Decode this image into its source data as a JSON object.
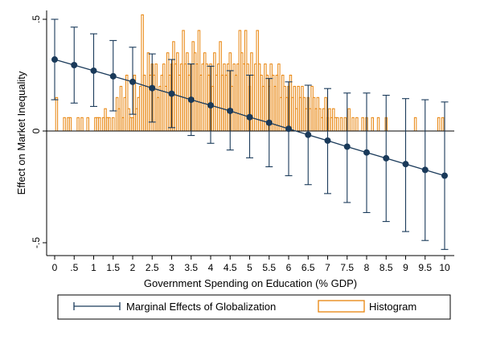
{
  "chart_data": {
    "type": "line",
    "xlabel": "Government Spending on Education (% GDP)",
    "ylabel": "Effect on Market Inequality",
    "xlim": [
      0,
      10
    ],
    "ylim": [
      -0.55,
      0.55
    ],
    "xticks": [
      "0",
      ".5",
      "1",
      "1.5",
      "2",
      "2.5",
      "3",
      "3.5",
      "4",
      "4.5",
      "5",
      "5.5",
      "6",
      "6.5",
      "7",
      "7.5",
      "8",
      "8.5",
      "9",
      "9.5",
      "10"
    ],
    "yticks": [
      {
        "value": 0.5,
        "label": ".5"
      },
      {
        "value": 0,
        "label": "0"
      },
      {
        "value": -0.5,
        "label": "-.5"
      }
    ],
    "zero_line": true,
    "grid": false,
    "legend_position": "bottom",
    "series": [
      {
        "name": "Marginal Effects of Globalization",
        "color": "#1a3a5a",
        "type": "line-with-error-bars",
        "x": [
          0,
          0.5,
          1,
          1.5,
          2,
          2.5,
          3,
          3.5,
          4,
          4.5,
          5,
          5.5,
          6,
          6.5,
          7,
          7.5,
          8,
          8.5,
          9,
          9.5,
          10
        ],
        "y": [
          0.32,
          0.295,
          0.27,
          0.245,
          0.22,
          0.192,
          0.167,
          0.14,
          0.115,
          0.09,
          0.062,
          0.037,
          0.01,
          -0.017,
          -0.043,
          -0.07,
          -0.096,
          -0.122,
          -0.148,
          -0.174,
          -0.2
        ],
        "ci_low": [
          0.14,
          0.125,
          0.11,
          0.09,
          0.075,
          0.04,
          0.015,
          -0.02,
          -0.055,
          -0.085,
          -0.12,
          -0.16,
          -0.2,
          -0.24,
          -0.28,
          -0.32,
          -0.365,
          -0.405,
          -0.45,
          -0.49,
          -0.53
        ],
        "ci_high": [
          0.5,
          0.465,
          0.435,
          0.405,
          0.375,
          0.345,
          0.32,
          0.3,
          0.29,
          0.27,
          0.25,
          0.235,
          0.22,
          0.205,
          0.19,
          0.17,
          0.17,
          0.16,
          0.145,
          0.14,
          0.13
        ]
      },
      {
        "name": "Histogram",
        "color": "#e8840c",
        "type": "histogram",
        "bin_width": 0.05,
        "bins": [
          {
            "x": 0.05,
            "y": 0.15
          },
          {
            "x": 0.25,
            "y": 0.06
          },
          {
            "x": 0.35,
            "y": 0.06
          },
          {
            "x": 0.4,
            "y": 0.06
          },
          {
            "x": 0.6,
            "y": 0.06
          },
          {
            "x": 0.7,
            "y": 0.06
          },
          {
            "x": 0.85,
            "y": 0.06
          },
          {
            "x": 1.05,
            "y": 0.06
          },
          {
            "x": 1.1,
            "y": 0.06
          },
          {
            "x": 1.15,
            "y": 0.06
          },
          {
            "x": 1.25,
            "y": 0.06
          },
          {
            "x": 1.3,
            "y": 0.1
          },
          {
            "x": 1.35,
            "y": 0.06
          },
          {
            "x": 1.4,
            "y": 0.06
          },
          {
            "x": 1.5,
            "y": 0.06
          },
          {
            "x": 1.6,
            "y": 0.15
          },
          {
            "x": 1.65,
            "y": 0.1
          },
          {
            "x": 1.7,
            "y": 0.2
          },
          {
            "x": 1.75,
            "y": 0.06
          },
          {
            "x": 1.8,
            "y": 0.15
          },
          {
            "x": 1.85,
            "y": 0.25
          },
          {
            "x": 1.9,
            "y": 0.1
          },
          {
            "x": 1.95,
            "y": 0.06
          },
          {
            "x": 2.0,
            "y": 0.06
          },
          {
            "x": 2.05,
            "y": 0.25
          },
          {
            "x": 2.1,
            "y": 0.1
          },
          {
            "x": 2.15,
            "y": 0.15
          },
          {
            "x": 2.2,
            "y": 0.2
          },
          {
            "x": 2.25,
            "y": 0.52
          },
          {
            "x": 2.3,
            "y": 0.25
          },
          {
            "x": 2.35,
            "y": 0.2
          },
          {
            "x": 2.4,
            "y": 0.35
          },
          {
            "x": 2.45,
            "y": 0.25
          },
          {
            "x": 2.5,
            "y": 0.3
          },
          {
            "x": 2.55,
            "y": 0.25
          },
          {
            "x": 2.6,
            "y": 0.3
          },
          {
            "x": 2.65,
            "y": 0.15
          },
          {
            "x": 2.7,
            "y": 0.2
          },
          {
            "x": 2.75,
            "y": 0.25
          },
          {
            "x": 2.8,
            "y": 0.3
          },
          {
            "x": 2.85,
            "y": 0.2
          },
          {
            "x": 2.9,
            "y": 0.35
          },
          {
            "x": 2.95,
            "y": 0.25
          },
          {
            "x": 3.0,
            "y": 0.3
          },
          {
            "x": 3.05,
            "y": 0.4
          },
          {
            "x": 3.1,
            "y": 0.3
          },
          {
            "x": 3.15,
            "y": 0.35
          },
          {
            "x": 3.2,
            "y": 0.25
          },
          {
            "x": 3.25,
            "y": 0.3
          },
          {
            "x": 3.3,
            "y": 0.45
          },
          {
            "x": 3.35,
            "y": 0.3
          },
          {
            "x": 3.4,
            "y": 0.35
          },
          {
            "x": 3.45,
            "y": 0.25
          },
          {
            "x": 3.5,
            "y": 0.3
          },
          {
            "x": 3.55,
            "y": 0.4
          },
          {
            "x": 3.6,
            "y": 0.35
          },
          {
            "x": 3.65,
            "y": 0.3
          },
          {
            "x": 3.7,
            "y": 0.45
          },
          {
            "x": 3.75,
            "y": 0.25
          },
          {
            "x": 3.8,
            "y": 0.3
          },
          {
            "x": 3.85,
            "y": 0.35
          },
          {
            "x": 3.9,
            "y": 0.3
          },
          {
            "x": 3.95,
            "y": 0.25
          },
          {
            "x": 4.0,
            "y": 0.3
          },
          {
            "x": 4.05,
            "y": 0.2
          },
          {
            "x": 4.1,
            "y": 0.35
          },
          {
            "x": 4.15,
            "y": 0.25
          },
          {
            "x": 4.2,
            "y": 0.3
          },
          {
            "x": 4.25,
            "y": 0.4
          },
          {
            "x": 4.3,
            "y": 0.25
          },
          {
            "x": 4.35,
            "y": 0.3
          },
          {
            "x": 4.4,
            "y": 0.25
          },
          {
            "x": 4.45,
            "y": 0.3
          },
          {
            "x": 4.5,
            "y": 0.35
          },
          {
            "x": 4.55,
            "y": 0.2
          },
          {
            "x": 4.6,
            "y": 0.3
          },
          {
            "x": 4.65,
            "y": 0.25
          },
          {
            "x": 4.7,
            "y": 0.3
          },
          {
            "x": 4.75,
            "y": 0.45
          },
          {
            "x": 4.8,
            "y": 0.35
          },
          {
            "x": 4.85,
            "y": 0.3
          },
          {
            "x": 4.9,
            "y": 0.45
          },
          {
            "x": 4.95,
            "y": 0.3
          },
          {
            "x": 5.0,
            "y": 0.2
          },
          {
            "x": 5.05,
            "y": 0.35
          },
          {
            "x": 5.1,
            "y": 0.25
          },
          {
            "x": 5.15,
            "y": 0.3
          },
          {
            "x": 5.2,
            "y": 0.45
          },
          {
            "x": 5.25,
            "y": 0.3
          },
          {
            "x": 5.3,
            "y": 0.25
          },
          {
            "x": 5.35,
            "y": 0.2
          },
          {
            "x": 5.4,
            "y": 0.3
          },
          {
            "x": 5.45,
            "y": 0.25
          },
          {
            "x": 5.5,
            "y": 0.2
          },
          {
            "x": 5.55,
            "y": 0.3
          },
          {
            "x": 5.6,
            "y": 0.25
          },
          {
            "x": 5.65,
            "y": 0.2
          },
          {
            "x": 5.7,
            "y": 0.25
          },
          {
            "x": 5.75,
            "y": 0.3
          },
          {
            "x": 5.8,
            "y": 0.15
          },
          {
            "x": 5.85,
            "y": 0.25
          },
          {
            "x": 5.9,
            "y": 0.2
          },
          {
            "x": 5.95,
            "y": 0.15
          },
          {
            "x": 6.0,
            "y": 0.2
          },
          {
            "x": 6.05,
            "y": 0.25
          },
          {
            "x": 6.1,
            "y": 0.15
          },
          {
            "x": 6.15,
            "y": 0.2
          },
          {
            "x": 6.2,
            "y": 0.1
          },
          {
            "x": 6.25,
            "y": 0.2
          },
          {
            "x": 6.3,
            "y": 0.15
          },
          {
            "x": 6.35,
            "y": 0.2
          },
          {
            "x": 6.4,
            "y": 0.15
          },
          {
            "x": 6.45,
            "y": 0.1
          },
          {
            "x": 6.5,
            "y": 0.15
          },
          {
            "x": 6.55,
            "y": 0.1
          },
          {
            "x": 6.6,
            "y": 0.2
          },
          {
            "x": 6.65,
            "y": 0.15
          },
          {
            "x": 6.7,
            "y": 0.1
          },
          {
            "x": 6.75,
            "y": 0.15
          },
          {
            "x": 6.8,
            "y": 0.1
          },
          {
            "x": 6.85,
            "y": 0.06
          },
          {
            "x": 6.9,
            "y": 0.1
          },
          {
            "x": 6.95,
            "y": 0.15
          },
          {
            "x": 7.0,
            "y": 0.06
          },
          {
            "x": 7.05,
            "y": 0.1
          },
          {
            "x": 7.1,
            "y": 0.06
          },
          {
            "x": 7.15,
            "y": 0.1
          },
          {
            "x": 7.2,
            "y": 0.06
          },
          {
            "x": 7.25,
            "y": 0.06
          },
          {
            "x": 7.35,
            "y": 0.06
          },
          {
            "x": 7.45,
            "y": 0.06
          },
          {
            "x": 7.55,
            "y": 0.1
          },
          {
            "x": 7.65,
            "y": 0.06
          },
          {
            "x": 7.75,
            "y": 0.06
          },
          {
            "x": 7.9,
            "y": 0.06
          },
          {
            "x": 8.0,
            "y": 0.06
          },
          {
            "x": 8.15,
            "y": 0.06
          },
          {
            "x": 8.3,
            "y": 0.06
          },
          {
            "x": 8.5,
            "y": 0.06
          },
          {
            "x": 9.25,
            "y": 0.06
          },
          {
            "x": 9.85,
            "y": 0.06
          },
          {
            "x": 9.95,
            "y": 0.06
          }
        ]
      }
    ]
  }
}
